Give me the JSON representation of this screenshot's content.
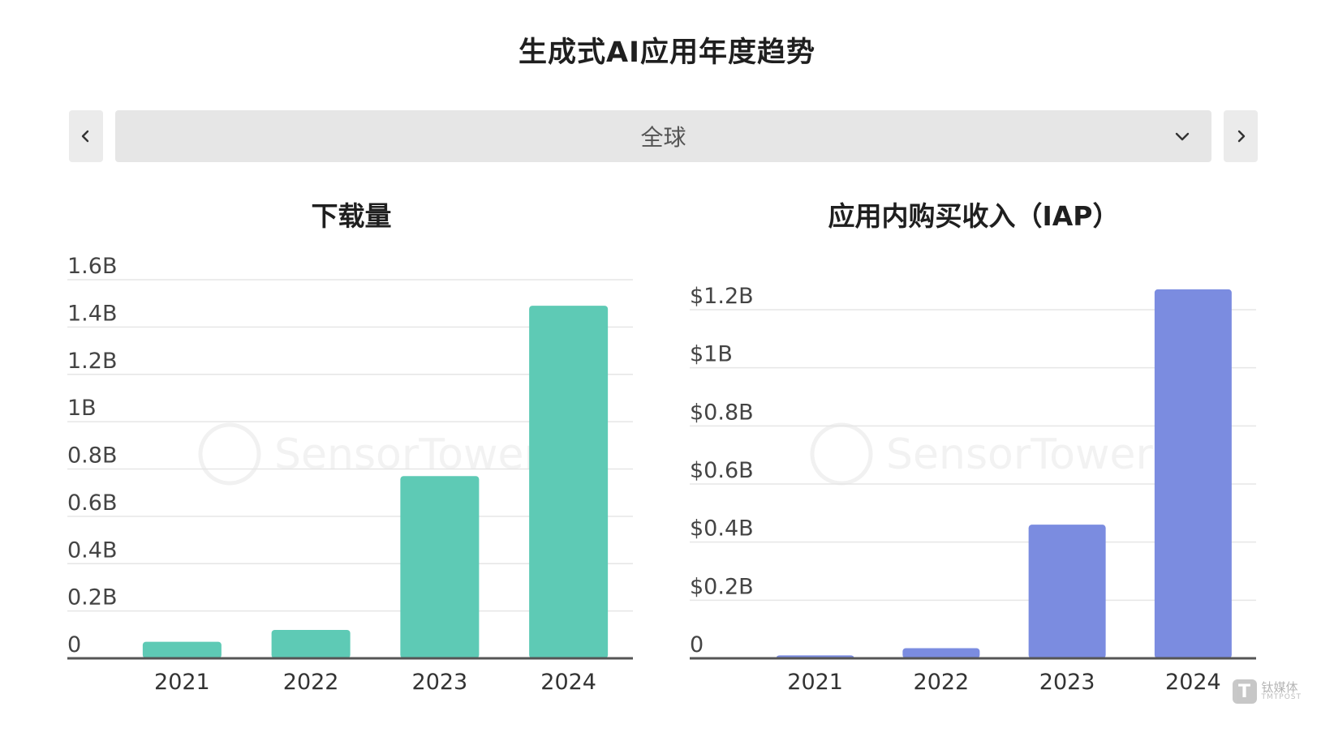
{
  "page": {
    "title": "生成式AI应用年度趋势"
  },
  "region_selector": {
    "selected": "全球",
    "prev_icon": "chevron-left-icon",
    "next_icon": "chevron-right-icon",
    "dropdown_icon": "chevron-down-icon"
  },
  "watermark": "SensorTower",
  "brand": {
    "cn": "钛媒体",
    "en": "TMTPOST"
  },
  "colors": {
    "downloads": "#5ecab5",
    "iap": "#7b8ce0",
    "grid": "#e6e6e6",
    "axis": "#555555"
  },
  "chart_data": [
    {
      "type": "bar",
      "title": "下载量",
      "categories": [
        "2021",
        "2022",
        "2023",
        "2024"
      ],
      "values": [
        0.07,
        0.12,
        0.77,
        1.49
      ],
      "ylim": [
        0,
        1.6
      ],
      "yticks": [
        0,
        0.2,
        0.4,
        0.6,
        0.8,
        1,
        1.2,
        1.4,
        1.6
      ],
      "ytick_labels": [
        "0",
        "0.2B",
        "0.4B",
        "0.6B",
        "0.8B",
        "1B",
        "1.2B",
        "1.4B",
        "1.6B"
      ],
      "grid": true,
      "xlabel": "",
      "ylabel": ""
    },
    {
      "type": "bar",
      "title": "应用内购买收入（IAP）",
      "categories": [
        "2021",
        "2022",
        "2023",
        "2024"
      ],
      "values": [
        0.01,
        0.035,
        0.46,
        1.27
      ],
      "ylim": [
        0,
        1.2
      ],
      "yticks": [
        0,
        0.2,
        0.4,
        0.6,
        0.8,
        1,
        1.2
      ],
      "ytick_labels": [
        "0",
        "$0.2B",
        "$0.4B",
        "$0.6B",
        "$0.8B",
        "$1B",
        "$1.2B"
      ],
      "grid": true,
      "xlabel": "",
      "ylabel": ""
    }
  ]
}
